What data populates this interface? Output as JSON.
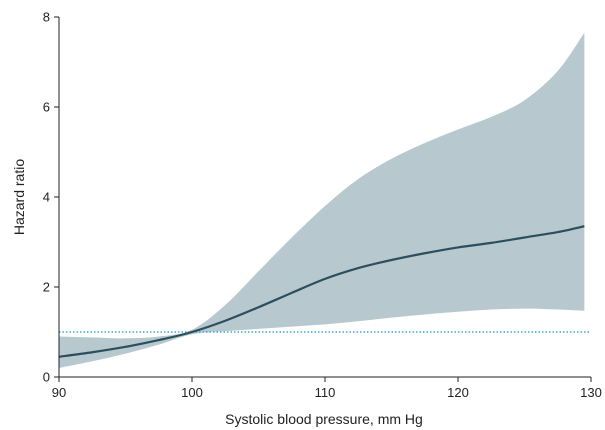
{
  "chart_data": {
    "type": "line",
    "title": "",
    "xlabel": "Systolic blood pressure, mm Hg",
    "ylabel": "Hazard ratio",
    "xlim": [
      90,
      130
    ],
    "ylim": [
      0,
      8
    ],
    "xticks": [
      90,
      100,
      110,
      120,
      130
    ],
    "yticks": [
      0,
      2,
      4,
      6,
      8
    ],
    "grid": false,
    "reference_line": {
      "y": 1,
      "style": "dotted",
      "color": "#3fa9dc"
    },
    "colors": {
      "line": "#2c4f5e",
      "band": "#b8c8cf",
      "axis": "#222222"
    },
    "series": [
      {
        "x": [
          90,
          92.5,
          95,
          97.5,
          100,
          102.5,
          105,
          107.5,
          110,
          112.5,
          115,
          117.5,
          120,
          122.5,
          125,
          127.5,
          129.5
        ],
        "y": [
          0.45,
          0.55,
          0.67,
          0.82,
          1.0,
          1.25,
          1.55,
          1.87,
          2.18,
          2.42,
          2.6,
          2.75,
          2.88,
          2.98,
          3.1,
          3.22,
          3.35
        ],
        "ci_lower": [
          0.2,
          0.35,
          0.52,
          0.72,
          0.95,
          1.02,
          1.07,
          1.12,
          1.17,
          1.24,
          1.32,
          1.39,
          1.45,
          1.5,
          1.52,
          1.5,
          1.47
        ],
        "ci_upper": [
          0.9,
          0.88,
          0.86,
          0.9,
          1.05,
          1.6,
          2.35,
          3.1,
          3.8,
          4.4,
          4.85,
          5.2,
          5.5,
          5.78,
          6.15,
          6.8,
          7.65
        ]
      }
    ]
  }
}
